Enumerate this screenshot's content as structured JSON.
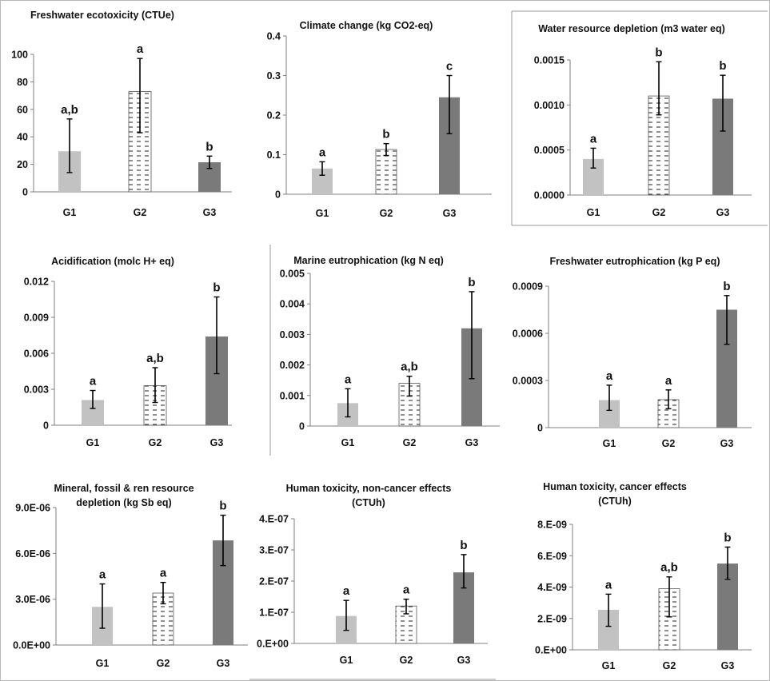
{
  "colors": {
    "g1": "#c2c2c2",
    "g3": "#7a7a7a",
    "g2_fill": "#ffffff",
    "g2_dash": "#333333",
    "axis": "#7f7f7f",
    "errorbar": "#000000",
    "text": "#111111"
  },
  "chart_data": [
    {
      "type": "bar",
      "title": [
        "Freshwater ecotoxicity (CTUe)"
      ],
      "categories": [
        "G1",
        "G2",
        "G3"
      ],
      "values": [
        29.5,
        73,
        21.5
      ],
      "errors": [
        [
          14,
          53
        ],
        [
          43,
          97
        ],
        [
          17,
          26
        ]
      ],
      "significance": [
        "a,b",
        "a",
        "b"
      ],
      "ylim": [
        0,
        100
      ],
      "ticks": [
        0,
        20,
        40,
        60,
        80,
        100
      ],
      "tick_labels": [
        "0",
        "20",
        "40",
        "60",
        "80",
        "100"
      ],
      "xlabel": "",
      "ylabel": ""
    },
    {
      "type": "bar",
      "title": [
        "Climate change (kg CO2-eq)"
      ],
      "categories": [
        "G1",
        "G2",
        "G3"
      ],
      "values": [
        0.065,
        0.113,
        0.245
      ],
      "errors": [
        [
          0.048,
          0.082
        ],
        [
          0.098,
          0.128
        ],
        [
          0.153,
          0.3
        ]
      ],
      "significance": [
        "a",
        "b",
        "c"
      ],
      "ylim": [
        0,
        0.4
      ],
      "ticks": [
        0,
        0.1,
        0.2,
        0.3,
        0.4
      ],
      "tick_labels": [
        "0",
        "0.1",
        "0.2",
        "0.3",
        "0.4"
      ],
      "xlabel": "",
      "ylabel": ""
    },
    {
      "type": "bar",
      "title": [
        "Water resource depletion (m3 water eq)"
      ],
      "categories": [
        "G1",
        "G2",
        "G3"
      ],
      "values": [
        0.0004,
        0.0011,
        0.00107
      ],
      "errors": [
        [
          0.0003,
          0.00052
        ],
        [
          0.00089,
          0.00148
        ],
        [
          0.00071,
          0.00133
        ]
      ],
      "significance": [
        "a",
        "b",
        "b"
      ],
      "ylim": [
        0,
        0.0015
      ],
      "ticks": [
        0,
        0.0005,
        0.001,
        0.0015
      ],
      "tick_labels": [
        "0.0000",
        "0.0005",
        "0.0010",
        "0.0015"
      ],
      "xlabel": "",
      "ylabel": ""
    },
    {
      "type": "bar",
      "title": [
        "Acidification (molc H+ eq)"
      ],
      "categories": [
        "G1",
        "G2",
        "G3"
      ],
      "values": [
        0.0021,
        0.0033,
        0.0074
      ],
      "errors": [
        [
          0.0014,
          0.0029
        ],
        [
          0.0019,
          0.0048
        ],
        [
          0.0043,
          0.0107
        ]
      ],
      "significance": [
        "a",
        "a,b",
        "b"
      ],
      "ylim": [
        0,
        0.012
      ],
      "ticks": [
        0,
        0.003,
        0.006,
        0.009,
        0.012
      ],
      "tick_labels": [
        "0",
        "0.003",
        "0.006",
        "0.009",
        "0.012"
      ],
      "xlabel": "",
      "ylabel": ""
    },
    {
      "type": "bar",
      "title": [
        "Marine eutrophication (kg N eq)"
      ],
      "categories": [
        "G1",
        "G2",
        "G3"
      ],
      "values": [
        0.00075,
        0.0014,
        0.0032
      ],
      "errors": [
        [
          0.0003,
          0.00122
        ],
        [
          0.00098,
          0.00163
        ],
        [
          0.00155,
          0.0044
        ]
      ],
      "significance": [
        "a",
        "a,b",
        "b"
      ],
      "ylim": [
        0,
        0.005
      ],
      "ticks": [
        0,
        0.001,
        0.002,
        0.003,
        0.004,
        0.005
      ],
      "tick_labels": [
        "0",
        "0.001",
        "0.002",
        "0.003",
        "0.004",
        "0.005"
      ],
      "xlabel": "",
      "ylabel": ""
    },
    {
      "type": "bar",
      "title": [
        "Freshwater eutrophication (kg P eq)"
      ],
      "categories": [
        "G1",
        "G2",
        "G3"
      ],
      "values": [
        0.000175,
        0.000178,
        0.00075
      ],
      "errors": [
        [
          0.00011,
          0.00027
        ],
        [
          0.00012,
          0.00024
        ],
        [
          0.00053,
          0.00084
        ]
      ],
      "significance": [
        "a",
        "a",
        "b"
      ],
      "ylim": [
        0,
        0.0009
      ],
      "ticks": [
        0,
        0.0003,
        0.0006,
        0.0009
      ],
      "tick_labels": [
        "0",
        "0.0003",
        "0.0006",
        "0.0009"
      ],
      "xlabel": "",
      "ylabel": ""
    },
    {
      "type": "bar",
      "title": [
        "Mineral, fossil & ren resource",
        "depletion (kg Sb eq)"
      ],
      "categories": [
        "G1",
        "G2",
        "G3"
      ],
      "values": [
        2.5e-06,
        3.4e-06,
        6.85e-06
      ],
      "errors": [
        [
          1.1e-06,
          4e-06
        ],
        [
          2.7e-06,
          4.1e-06
        ],
        [
          5.2e-06,
          8.5e-06
        ]
      ],
      "significance": [
        "a",
        "a",
        "b"
      ],
      "ylim": [
        0,
        9e-06
      ],
      "ticks": [
        0,
        3e-06,
        6e-06,
        9e-06
      ],
      "tick_labels": [
        "0.0E+00",
        "3.0E-06",
        "6.0E-06",
        "9.0E-06"
      ],
      "xlabel": "",
      "ylabel": ""
    },
    {
      "type": "bar",
      "title": [
        "Human toxicity,  non-cancer effects",
        "(CTUh)"
      ],
      "categories": [
        "G1",
        "G2",
        "G3"
      ],
      "values": [
        8.8e-08,
        1.2e-07,
        2.28e-07
      ],
      "errors": [
        [
          4.2e-08,
          1.38e-07
        ],
        [
          9.5e-08,
          1.42e-07
        ],
        [
          1.78e-07,
          2.85e-07
        ]
      ],
      "significance": [
        "a",
        "a",
        "b"
      ],
      "ylim": [
        0,
        4e-07
      ],
      "ticks": [
        0,
        1e-07,
        2e-07,
        3e-07,
        4e-07
      ],
      "tick_labels": [
        "0.E+00",
        "1.E-07",
        "2.E-07",
        "3.E-07",
        "4.E-07"
      ],
      "xlabel": "",
      "ylabel": ""
    },
    {
      "type": "bar",
      "title": [
        "Human toxicity, cancer effects",
        "(CTUh)"
      ],
      "categories": [
        "G1",
        "G2",
        "G3"
      ],
      "values": [
        2.55e-09,
        3.9e-09,
        5.5e-09
      ],
      "errors": [
        [
          1.5e-09,
          3.55e-09
        ],
        [
          2.1e-09,
          4.65e-09
        ],
        [
          4.5e-09,
          6.55e-09
        ]
      ],
      "significance": [
        "a",
        "a,b",
        "b"
      ],
      "ylim": [
        0,
        8e-09
      ],
      "ticks": [
        0,
        2e-09,
        4e-09,
        6e-09,
        8e-09
      ],
      "tick_labels": [
        "0.E+00",
        "2.E-09",
        "4.E-09",
        "6.E-09",
        "8.E-09"
      ],
      "xlabel": "",
      "ylabel": ""
    }
  ]
}
